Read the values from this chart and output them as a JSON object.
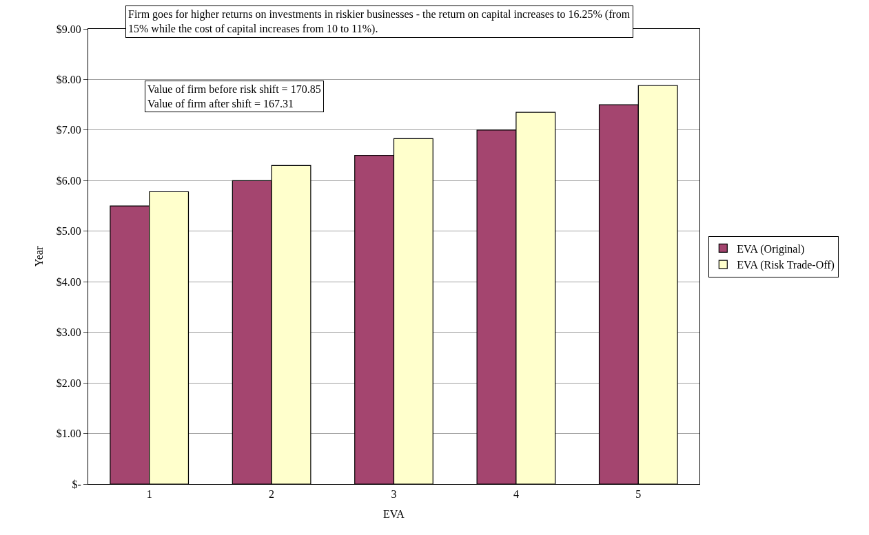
{
  "chart_data": {
    "type": "bar",
    "xlabel": "EVA",
    "ylabel": "Year",
    "categories": [
      "1",
      "2",
      "3",
      "4",
      "5"
    ],
    "series": [
      {
        "name": "EVA (Original)",
        "color": "#a4456f",
        "values": [
          5.5,
          6.0,
          6.5,
          7.0,
          7.5
        ]
      },
      {
        "name": "EVA (Risk Trade-Off)",
        "color": "#ffffcc",
        "values": [
          5.78,
          6.3,
          6.83,
          7.35,
          7.88
        ]
      }
    ],
    "ylim": [
      0,
      9
    ],
    "yticks": [
      {
        "value": 0,
        "label": "$-"
      },
      {
        "value": 1,
        "label": "$1.00"
      },
      {
        "value": 2,
        "label": "$2.00"
      },
      {
        "value": 3,
        "label": "$3.00"
      },
      {
        "value": 4,
        "label": "$4.00"
      },
      {
        "value": 5,
        "label": "$5.00"
      },
      {
        "value": 6,
        "label": "$6.00"
      },
      {
        "value": 7,
        "label": "$7.00"
      },
      {
        "value": 8,
        "label": "$8.00"
      },
      {
        "value": 9,
        "label": "$9.00"
      }
    ],
    "grid": "y",
    "legend": "right",
    "annotations": [
      "Firm goes for higher returns on investments in riskier businesses - the return on capital increases to 16.25% (from\n15% while the cost of capital increases from 10 to 11%).",
      "Value of firm before risk shift = 170.85\nValue of firm after shift = 167.31"
    ]
  }
}
